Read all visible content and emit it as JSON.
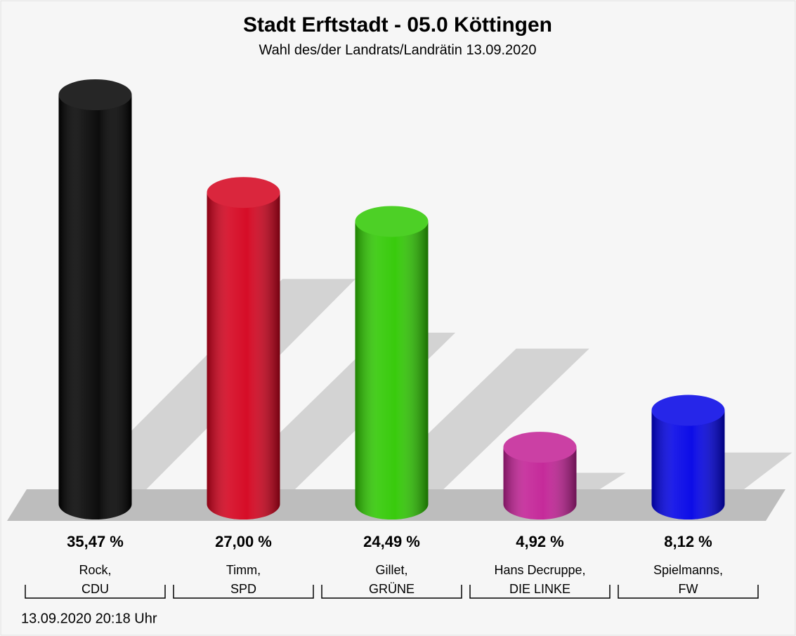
{
  "chart_data": {
    "type": "bar",
    "title": "Stadt Erftstadt - 05.0 Köttingen",
    "subtitle": "Wahl des/der Landrats/Landrätin 13.09.2020",
    "categories": [
      [
        "Rock,",
        "CDU"
      ],
      [
        "Timm,",
        "SPD"
      ],
      [
        "Gillet,",
        "GRÜNE"
      ],
      [
        "Hans Decruppe,",
        "DIE LINKE"
      ],
      [
        "Spielmanns,",
        "FW"
      ]
    ],
    "values": [
      35.47,
      27.0,
      24.49,
      4.92,
      8.12
    ],
    "value_labels": [
      "35,47 %",
      "27,00 %",
      "24,49 %",
      "4,92 %",
      "8,12 %"
    ],
    "colors": [
      "#000000",
      "#d4001c",
      "#2ec800",
      "#c21f95",
      "#0000e6"
    ],
    "footnote": "13.09.2020 20:18 Uhr"
  }
}
